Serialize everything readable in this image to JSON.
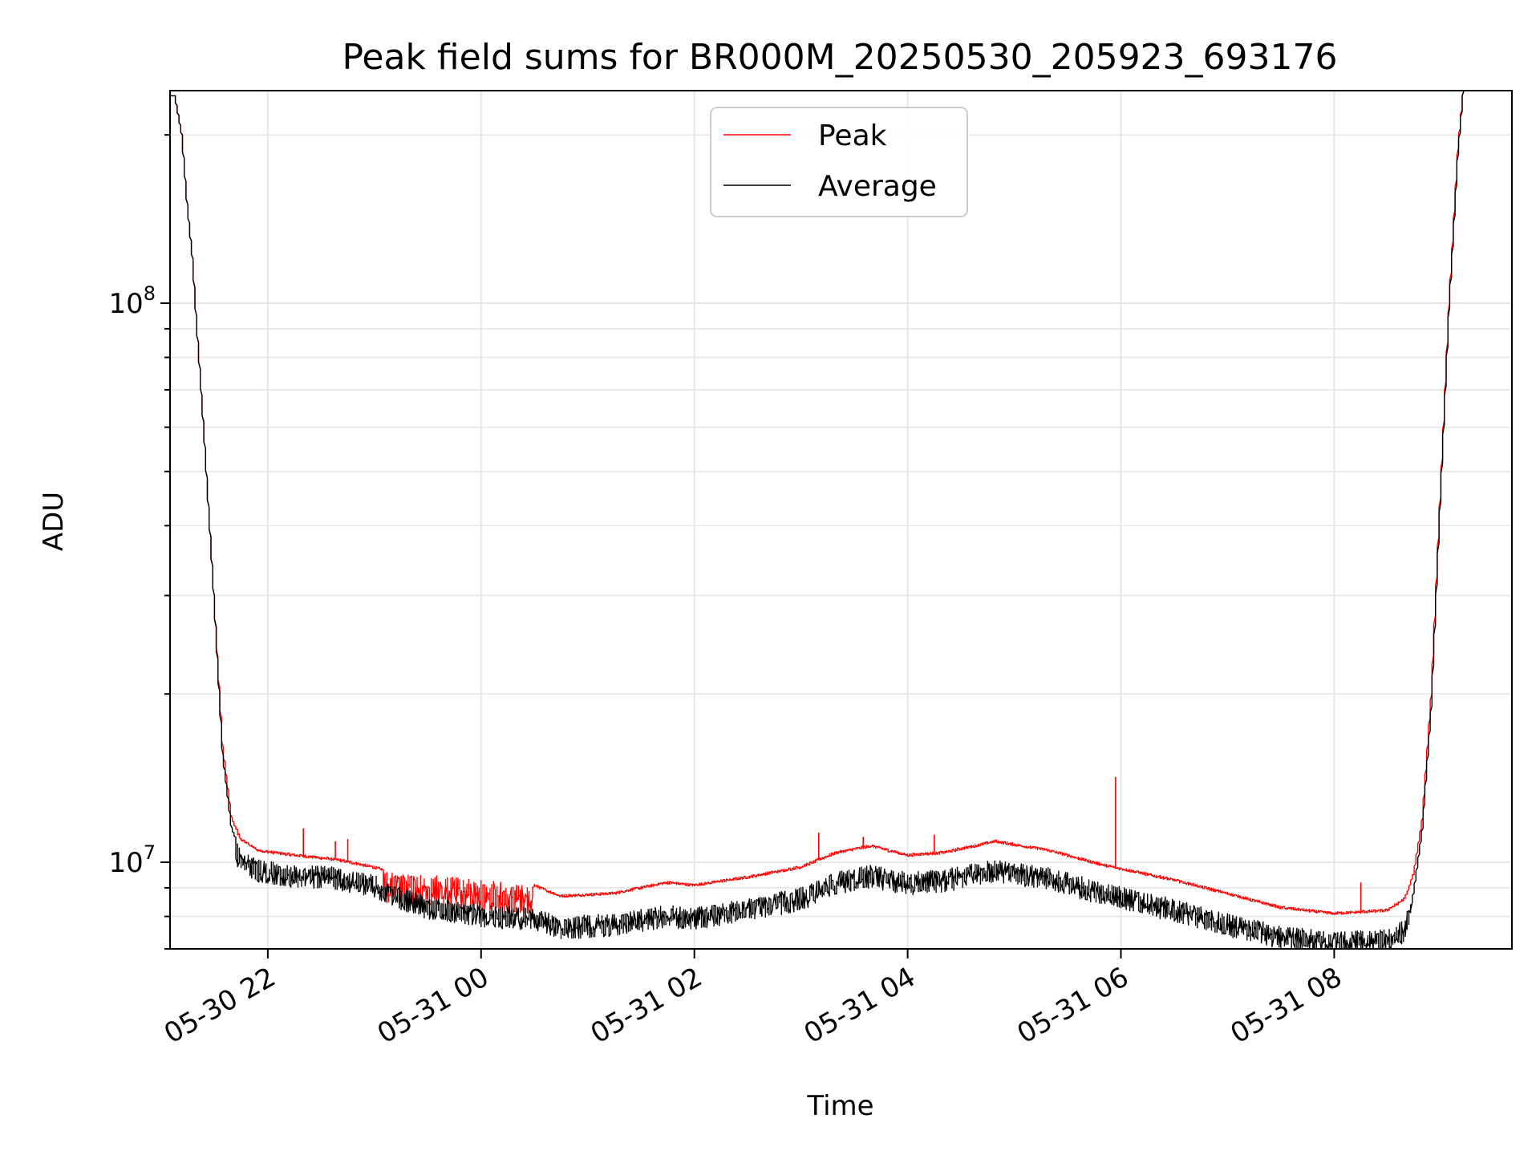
{
  "chart_data": {
    "type": "line",
    "title": "Peak field sums for BR000M_20250530_205923_693176",
    "xlabel": "Time",
    "ylabel": "ADU",
    "y_scale": "log",
    "xlim": [
      "2025-05-30 21:05",
      "2025-05-31 09:40"
    ],
    "ylim": [
      7000000,
      240000000
    ],
    "x_ticks": [
      {
        "t": "2025-05-30 22:00",
        "label": "05-30 22"
      },
      {
        "t": "2025-05-31 00:00",
        "label": "05-31 00"
      },
      {
        "t": "2025-05-31 02:00",
        "label": "05-31 02"
      },
      {
        "t": "2025-05-31 04:00",
        "label": "05-31 04"
      },
      {
        "t": "2025-05-31 06:00",
        "label": "05-31 06"
      },
      {
        "t": "2025-05-31 08:00",
        "label": "05-31 08"
      }
    ],
    "y_ticks": [
      {
        "v": 10000000,
        "base": "10",
        "exp": "7"
      },
      {
        "v": 100000000,
        "base": "10",
        "exp": "8"
      }
    ],
    "grid": true,
    "legend_position": "top-center",
    "series": [
      {
        "name": "Peak",
        "color": "#ff0000",
        "points": [
          [
            "2025-05-30 21:05",
            235000000
          ],
          [
            "2025-05-30 21:08",
            235000000
          ],
          [
            "2025-05-30 21:12",
            200000000
          ],
          [
            "2025-05-30 21:15",
            150000000
          ],
          [
            "2025-05-30 21:18",
            120000000
          ],
          [
            "2025-05-30 21:20",
            95000000
          ],
          [
            "2025-05-30 21:25",
            55000000
          ],
          [
            "2025-05-30 21:30",
            30000000
          ],
          [
            "2025-05-30 21:35",
            16000000
          ],
          [
            "2025-05-30 21:40",
            12000000
          ],
          [
            "2025-05-30 21:45",
            11000000
          ],
          [
            "2025-05-30 21:55",
            10500000
          ],
          [
            "2025-05-30 22:15",
            10300000
          ],
          [
            "2025-05-30 22:40",
            10100000
          ],
          [
            "2025-05-30 23:00",
            9800000
          ],
          [
            "2025-05-30 23:15",
            9500000
          ],
          [
            "2025-05-30 23:30",
            9500000
          ],
          [
            "2025-05-31 00:00",
            9300000
          ],
          [
            "2025-05-31 00:30",
            9100000
          ],
          [
            "2025-05-31 00:45",
            8700000
          ],
          [
            "2025-05-31 01:15",
            8800000
          ],
          [
            "2025-05-31 01:45",
            9200000
          ],
          [
            "2025-05-31 02:00",
            9100000
          ],
          [
            "2025-05-31 02:30",
            9400000
          ],
          [
            "2025-05-31 03:00",
            9800000
          ],
          [
            "2025-05-31 03:20",
            10400000
          ],
          [
            "2025-05-31 03:40",
            10700000
          ],
          [
            "2025-05-31 04:00",
            10300000
          ],
          [
            "2025-05-31 04:20",
            10400000
          ],
          [
            "2025-05-31 04:50",
            10900000
          ],
          [
            "2025-05-31 05:20",
            10500000
          ],
          [
            "2025-05-31 05:50",
            9900000
          ],
          [
            "2025-05-31 06:30",
            9300000
          ],
          [
            "2025-05-31 07:00",
            8800000
          ],
          [
            "2025-05-31 07:30",
            8300000
          ],
          [
            "2025-05-31 08:00",
            8100000
          ],
          [
            "2025-05-31 08:30",
            8200000
          ],
          [
            "2025-05-31 08:40",
            8600000
          ],
          [
            "2025-05-31 08:45",
            9500000
          ],
          [
            "2025-05-31 08:50",
            12000000
          ],
          [
            "2025-05-31 08:55",
            20000000
          ],
          [
            "2025-05-31 09:00",
            45000000
          ],
          [
            "2025-05-31 09:05",
            100000000
          ],
          [
            "2025-05-31 09:10",
            190000000
          ],
          [
            "2025-05-31 09:13",
            240000000
          ]
        ],
        "spikes": [
          [
            "2025-05-30 22:20",
            11500000
          ],
          [
            "2025-05-30 22:38",
            10900000
          ],
          [
            "2025-05-30 22:45",
            11000000
          ],
          [
            "2025-05-31 03:10",
            11300000
          ],
          [
            "2025-05-31 03:35",
            11100000
          ],
          [
            "2025-05-31 04:15",
            11200000
          ],
          [
            "2025-05-31 05:57",
            14200000
          ],
          [
            "2025-05-31 08:15",
            9200000
          ]
        ]
      },
      {
        "name": "Average",
        "color": "#000000",
        "points": [
          [
            "2025-05-30 21:05",
            235000000
          ],
          [
            "2025-05-30 21:08",
            235000000
          ],
          [
            "2025-05-30 21:12",
            200000000
          ],
          [
            "2025-05-30 21:15",
            150000000
          ],
          [
            "2025-05-30 21:18",
            120000000
          ],
          [
            "2025-05-30 21:20",
            95000000
          ],
          [
            "2025-05-30 21:25",
            55000000
          ],
          [
            "2025-05-30 21:30",
            30000000
          ],
          [
            "2025-05-30 21:35",
            15500000
          ],
          [
            "2025-05-30 21:40",
            11500000
          ],
          [
            "2025-05-30 21:45",
            10500000
          ],
          [
            "2025-05-30 21:55",
            10100000
          ],
          [
            "2025-05-30 22:15",
            9900000
          ],
          [
            "2025-05-30 22:40",
            9800000
          ],
          [
            "2025-05-30 23:00",
            9500000
          ],
          [
            "2025-05-30 23:15",
            9000000
          ],
          [
            "2025-05-30 23:30",
            8700000
          ],
          [
            "2025-05-31 00:00",
            8400000
          ],
          [
            "2025-05-31 00:30",
            8300000
          ],
          [
            "2025-05-31 00:45",
            8000000
          ],
          [
            "2025-05-31 01:15",
            8100000
          ],
          [
            "2025-05-31 01:45",
            8400000
          ],
          [
            "2025-05-31 02:00",
            8300000
          ],
          [
            "2025-05-31 02:30",
            8600000
          ],
          [
            "2025-05-31 03:00",
            9000000
          ],
          [
            "2025-05-31 03:20",
            9600000
          ],
          [
            "2025-05-31 03:40",
            9900000
          ],
          [
            "2025-05-31 04:00",
            9600000
          ],
          [
            "2025-05-31 04:20",
            9700000
          ],
          [
            "2025-05-31 04:50",
            10100000
          ],
          [
            "2025-05-31 05:20",
            9800000
          ],
          [
            "2025-05-31 05:50",
            9200000
          ],
          [
            "2025-05-31 06:30",
            8600000
          ],
          [
            "2025-05-31 07:00",
            8100000
          ],
          [
            "2025-05-31 07:30",
            7700000
          ],
          [
            "2025-05-31 08:00",
            7500000
          ],
          [
            "2025-05-31 08:30",
            7600000
          ],
          [
            "2025-05-31 08:40",
            7900000
          ],
          [
            "2025-05-31 08:45",
            8800000
          ],
          [
            "2025-05-31 08:50",
            11500000
          ],
          [
            "2025-05-31 08:55",
            19000000
          ],
          [
            "2025-05-31 09:00",
            44000000
          ],
          [
            "2025-05-31 09:05",
            98000000
          ],
          [
            "2025-05-31 09:10",
            185000000
          ],
          [
            "2025-05-31 09:13",
            240000000
          ]
        ]
      }
    ]
  }
}
